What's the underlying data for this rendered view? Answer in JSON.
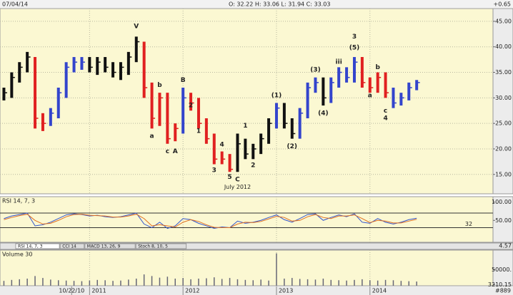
{
  "header": {
    "date": "07/04/14",
    "ohlc": "O: 32.22    H: 33.06    L: 31.94    C: 33.03",
    "change": "+0.65"
  },
  "tabs": [
    "RSI 14, 7, 3",
    "CCI 14",
    "MACD 13, 26, 9",
    "Stoch 8, 10, 5"
  ],
  "divider_label": "4.57",
  "corner_label": "#889",
  "chart_data": [
    {
      "type": "candlestick",
      "high": [
        32,
        35,
        37,
        39,
        38,
        27,
        28,
        32,
        37,
        38,
        38,
        38,
        38,
        38,
        37,
        37,
        39,
        42,
        41,
        33,
        31,
        31,
        25,
        32,
        31,
        30,
        26,
        23,
        19.5,
        19,
        23,
        22,
        21,
        23,
        26,
        29,
        29,
        26,
        28,
        33,
        34,
        34,
        34,
        36,
        36,
        38,
        38,
        34,
        35,
        35,
        32,
        31,
        33,
        33.5
      ],
      "low": [
        29.5,
        30,
        33,
        35,
        24,
        23.5,
        24.5,
        26,
        30,
        35,
        35.5,
        35,
        34.5,
        35,
        34,
        33.5,
        34.5,
        37,
        30,
        24,
        24.5,
        21,
        21.5,
        23,
        27.5,
        24,
        21,
        17,
        17,
        15.5,
        15.5,
        18,
        18,
        19,
        21,
        24,
        24,
        22,
        22,
        26,
        31,
        28.5,
        29,
        32,
        33,
        33,
        32,
        31,
        31,
        30,
        28,
        28.5,
        29.5,
        31.5
      ],
      "close": [
        31,
        34,
        36,
        38,
        26,
        25,
        27,
        31,
        36,
        37,
        37,
        36,
        37,
        36,
        35,
        36,
        38,
        41,
        32,
        26,
        30,
        22,
        24,
        30,
        29,
        25,
        22,
        18,
        18,
        16,
        21,
        19,
        20,
        22,
        25,
        28,
        25,
        23,
        27,
        32,
        33,
        30,
        33,
        35,
        34,
        37,
        33,
        32,
        34,
        31,
        29,
        30,
        32,
        33
      ],
      "colors": [
        "#111111",
        "#111111",
        "#111111",
        "#111111",
        "#e02020",
        "#e02020",
        "#3344cc",
        "#3344cc",
        "#3344cc",
        "#3344cc",
        "#3344cc",
        "#111111",
        "#111111",
        "#111111",
        "#111111",
        "#111111",
        "#111111",
        "#111111",
        "#e02020",
        "#e02020",
        "#e02020",
        "#e02020",
        "#e02020",
        "#3344cc",
        "#e02020",
        "#e02020",
        "#e02020",
        "#e02020",
        "#e02020",
        "#e02020",
        "#111111",
        "#111111",
        "#111111",
        "#111111",
        "#111111",
        "#3344cc",
        "#111111",
        "#111111",
        "#3344cc",
        "#3344cc",
        "#3344cc",
        "#111111",
        "#3344cc",
        "#3344cc",
        "#3344cc",
        "#3344cc",
        "#e02020",
        "#e02020",
        "#e02020",
        "#e02020",
        "#3344cc",
        "#3344cc",
        "#3344cc",
        "#3344cc"
      ],
      "xlim": [
        -0.5,
        62.8
      ],
      "xticks": [
        {
          "value": 8.7,
          "label": "10/22/10"
        },
        {
          "value": 11,
          "label": "2011"
        },
        {
          "value": 23,
          "label": "2012"
        },
        {
          "value": 35,
          "label": "2013"
        },
        {
          "value": 47,
          "label": "2014"
        }
      ],
      "ylim": [
        11.2,
        47.5
      ],
      "yticks": [
        {
          "value": 15,
          "label": "15.00"
        },
        {
          "value": 20,
          "label": "20.00"
        },
        {
          "value": 25,
          "label": "25.00"
        },
        {
          "value": 30,
          "label": "30.00"
        },
        {
          "value": 35,
          "label": "35.00"
        },
        {
          "value": 40,
          "label": "40.00"
        },
        {
          "value": 45,
          "label": "45.00"
        }
      ],
      "grid": true,
      "annotations": [
        {
          "text": "V",
          "index": 17,
          "price": 44
        },
        {
          "text": "a",
          "index": 19,
          "price": 22.5
        },
        {
          "text": "b",
          "index": 20,
          "price": 32.5
        },
        {
          "text": "c",
          "index": 21,
          "price": 19.5
        },
        {
          "text": "A",
          "index": 22,
          "price": 19.5
        },
        {
          "text": "B",
          "index": 23,
          "price": 33.5
        },
        {
          "text": "2",
          "index": 24,
          "price": 28.5
        },
        {
          "text": "1",
          "index": 25,
          "price": 23.5
        },
        {
          "text": "3",
          "index": 27,
          "price": 15.8
        },
        {
          "text": "4",
          "index": 28,
          "price": 20.8
        },
        {
          "text": "5",
          "index": 29,
          "price": 14.5
        },
        {
          "text": "C",
          "index": 30,
          "price": 14.0
        },
        {
          "text": "1",
          "index": 31,
          "price": 24.5
        },
        {
          "text": "2",
          "index": 32,
          "price": 16.8
        },
        {
          "text": "July 2012",
          "index": 30,
          "price": 12.5
        },
        {
          "text": "(1)",
          "index": 35,
          "price": 30.5
        },
        {
          "text": "(2)",
          "index": 37,
          "price": 20.5
        },
        {
          "text": "(3)",
          "index": 40,
          "price": 35.5
        },
        {
          "text": "(4)",
          "index": 41,
          "price": 27.0
        },
        {
          "text": "iii",
          "index": 43,
          "price": 37.0
        },
        {
          "text": "(5)",
          "index": 45,
          "price": 39.8
        },
        {
          "text": "3",
          "index": 45,
          "price": 42.0
        },
        {
          "text": "a",
          "index": 47,
          "price": 30.5
        },
        {
          "text": "b",
          "index": 48,
          "price": 36.0
        },
        {
          "text": "c",
          "index": 49,
          "price": 27.5
        },
        {
          "text": "4",
          "index": 49,
          "price": 26.0
        }
      ]
    },
    {
      "type": "line",
      "title": "RSI 14, 7, 3",
      "series": [
        {
          "color": "#3355cc",
          "values": [
            55,
            62,
            66,
            70,
            35,
            38,
            45,
            55,
            65,
            68,
            66,
            62,
            64,
            60,
            58,
            60,
            65,
            70,
            40,
            30,
            45,
            28,
            35,
            55,
            52,
            42,
            35,
            28,
            32,
            30,
            48,
            42,
            45,
            50,
            58,
            65,
            52,
            45,
            55,
            66,
            68,
            50,
            58,
            65,
            60,
            68,
            45,
            42,
            55,
            45,
            40,
            45,
            52,
            56
          ]
        },
        {
          "color": "#e07020",
          "values": [
            52,
            58,
            63,
            67,
            50,
            40,
            42,
            50,
            60,
            66,
            67,
            64,
            63,
            62,
            59,
            59,
            62,
            67,
            55,
            35,
            38,
            35,
            32,
            45,
            52,
            47,
            38,
            31,
            30,
            30,
            40,
            45,
            44,
            47,
            54,
            61,
            58,
            48,
            50,
            60,
            66,
            58,
            55,
            62,
            62,
            65,
            55,
            44,
            50,
            48,
            43,
            43,
            48,
            53
          ]
        }
      ],
      "levels": [
        70,
        30
      ],
      "ylim": [
        -10,
        115
      ],
      "yticks": [
        {
          "value": 100,
          "label": "100.00"
        },
        {
          "value": 50,
          "label": "50.00"
        }
      ],
      "annotation": "32"
    },
    {
      "type": "volume",
      "title": "Volume 30",
      "color": "#666677",
      "values": [
        15000,
        18000,
        20000,
        22000,
        30000,
        24000,
        19000,
        17000,
        16000,
        15000,
        14000,
        16000,
        18000,
        17000,
        15000,
        16000,
        19000,
        22000,
        35000,
        30000,
        25000,
        28000,
        22000,
        24000,
        20000,
        22000,
        23000,
        26000,
        21000,
        24000,
        20000,
        18000,
        17000,
        19000,
        16000,
        100000,
        22000,
        24000,
        21000,
        20000,
        19000,
        22000,
        18000,
        17000,
        16000,
        18000,
        20000,
        17000,
        16000,
        18000,
        17000,
        15000,
        14000,
        13000
      ],
      "ylim": [
        0,
        110000
      ],
      "yticks": [
        {
          "value": 50000,
          "label": "50000."
        },
        {
          "value": 3210.15,
          "label": "3210.15"
        }
      ]
    }
  ]
}
